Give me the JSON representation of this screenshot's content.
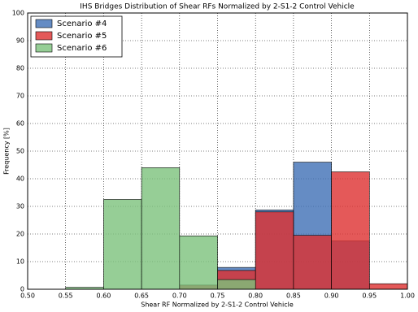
{
  "chart_data": {
    "type": "histogram",
    "title": "IHS Bridges Distribution of Shear RFs Normalized by 2-S1-2 Control Vehicle",
    "x_label": "Shear RF Normalized by 2-S1-2 Control Vehicle",
    "y_label": "Frequency [%]",
    "bins": [
      0.5,
      0.55,
      0.6,
      0.65,
      0.7,
      0.75,
      0.8,
      0.85,
      0.9,
      0.95,
      1.0
    ],
    "series": [
      {
        "name": "Scenario #4",
        "color": "#3f6fb5",
        "values": [
          0,
          0,
          0,
          0,
          1.5,
          7.9,
          28.7,
          46,
          17.5,
          0
        ]
      },
      {
        "name": "Scenario #5",
        "color": "#dd2f2f",
        "values": [
          0,
          0,
          0,
          0,
          1.5,
          6.8,
          28,
          19.5,
          42.5,
          2
        ]
      },
      {
        "name": "Scenario #6",
        "color": "#7cc27c",
        "values": [
          0,
          0.7,
          32.5,
          44,
          19.3,
          3.5,
          0,
          0,
          0,
          0
        ]
      }
    ],
    "xlim": [
      0.5,
      1.0
    ],
    "ylim": [
      0,
      100
    ],
    "xticks": [
      {
        "value": 0.5,
        "label": "0.50"
      },
      {
        "value": 0.55,
        "label": "0.55"
      },
      {
        "value": 0.6,
        "label": "0.60"
      },
      {
        "value": 0.65,
        "label": "0.65"
      },
      {
        "value": 0.7,
        "label": "0.70"
      },
      {
        "value": 0.75,
        "label": "0.75"
      },
      {
        "value": 0.8,
        "label": "0.80"
      },
      {
        "value": 0.85,
        "label": "0.85"
      },
      {
        "value": 0.9,
        "label": "0.90"
      },
      {
        "value": 0.95,
        "label": "0.95"
      },
      {
        "value": 1.0,
        "label": "1.00"
      }
    ],
    "yticks": [
      0,
      10,
      20,
      30,
      40,
      50,
      60,
      70,
      80,
      90,
      100
    ],
    "grid": true,
    "legend": "upper-left"
  }
}
